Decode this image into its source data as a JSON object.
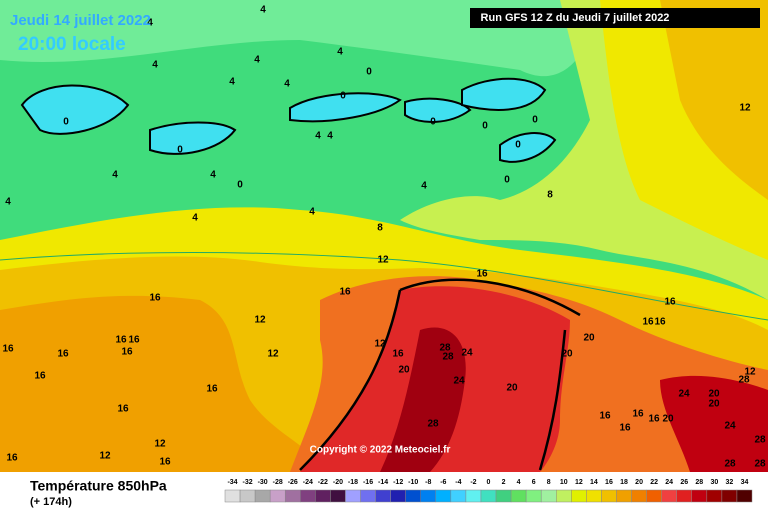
{
  "header": {
    "valid_date": "Jeudi 14 juillet 2022",
    "local_time": "20:00 locale",
    "run": "Run GFS 12 Z du Jeudi 7 juillet 2022"
  },
  "copyright": "Copyright © 2022 Meteociel.fr",
  "footer": {
    "title": "Température 850hPa",
    "lead": "(+ 174h)"
  },
  "scale": {
    "labels": [
      -34,
      -32,
      -30,
      -28,
      -26,
      -24,
      -22,
      -20,
      -18,
      -16,
      -14,
      -12,
      -10,
      -8,
      -6,
      -4,
      -2,
      0,
      2,
      4,
      6,
      8,
      10,
      12,
      14,
      16,
      18,
      20,
      22,
      24,
      26,
      28,
      30,
      32,
      34
    ],
    "colors": [
      "#e0e0e0",
      "#c8c8c8",
      "#a8a8a8",
      "#c8a0c8",
      "#a070a0",
      "#804080",
      "#602060",
      "#401040",
      "#a0a0ff",
      "#7070f0",
      "#4040d0",
      "#2020b0",
      "#0050d0",
      "#0080f0",
      "#00b0ff",
      "#40d0ff",
      "#60f0f0",
      "#40e0c0",
      "#40d080",
      "#60e060",
      "#80f080",
      "#a0f0a0",
      "#c0f060",
      "#e0f000",
      "#f0e000",
      "#f0c000",
      "#f0a000",
      "#f08000",
      "#f06000",
      "#f04040",
      "#e02020",
      "#c00010",
      "#a00000",
      "#800000",
      "#500000"
    ]
  },
  "contour_labels": [
    "4",
    "4",
    "4",
    "4",
    "4",
    "4",
    "4",
    "0",
    "0",
    "0",
    "0",
    "0",
    "0",
    "0",
    "0",
    "0",
    "0",
    "4",
    "4",
    "4",
    "4",
    "4",
    "4",
    "4",
    "4",
    "8",
    "8",
    "12",
    "16",
    "12",
    "16",
    "16",
    "12",
    "16",
    "16",
    "16",
    "16",
    "16",
    "16",
    "12",
    "16",
    "16",
    "12",
    "12",
    "16",
    "16",
    "12",
    "16",
    "20",
    "28",
    "28",
    "24",
    "24",
    "20",
    "20",
    "20",
    "28",
    "16",
    "16",
    "16",
    "24",
    "20",
    "20",
    "12",
    "28",
    "16",
    "16",
    "16",
    "20",
    "16",
    "24",
    "28",
    "28",
    "28"
  ]
}
